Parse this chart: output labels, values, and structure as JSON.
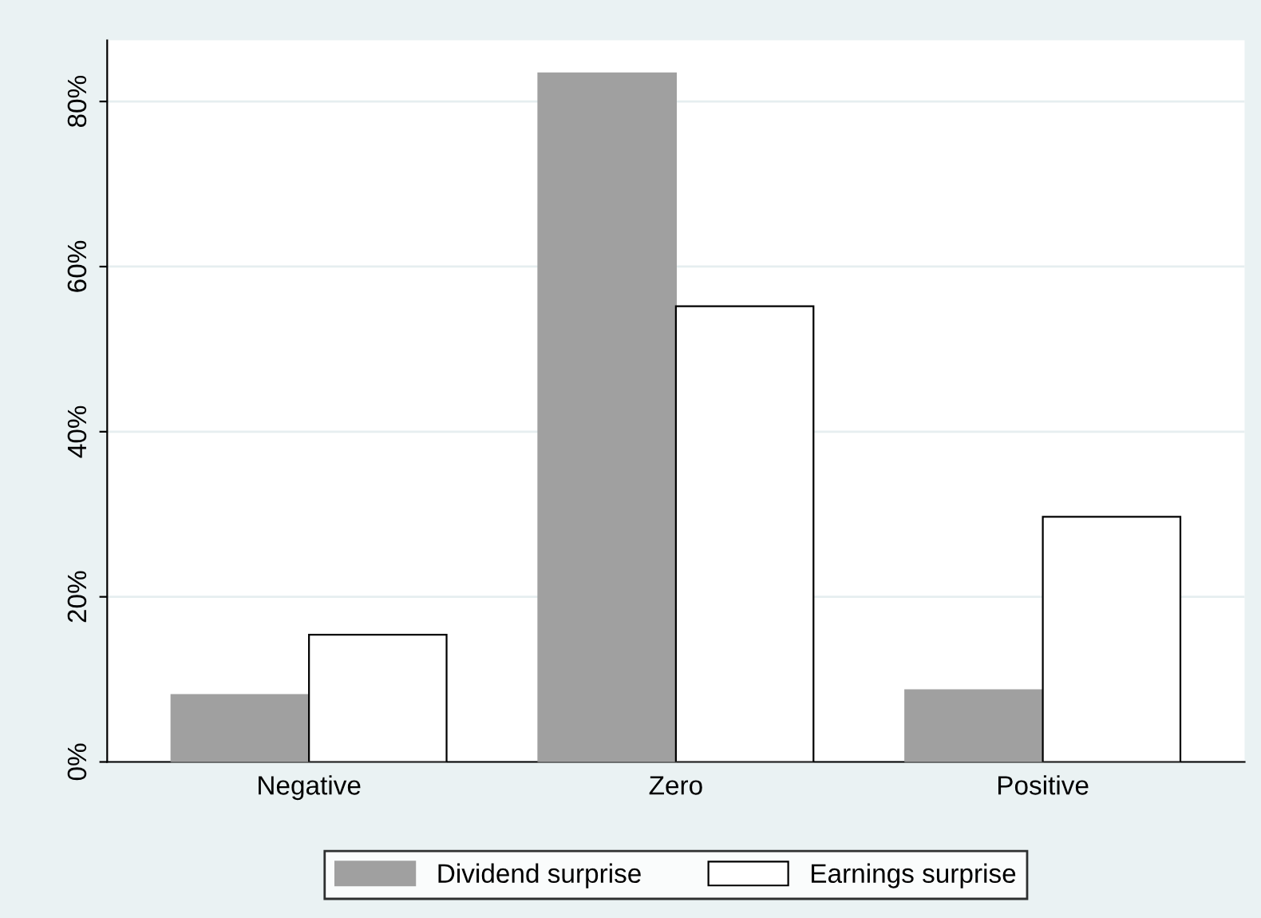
{
  "chart_data": {
    "type": "bar",
    "categories": [
      "Negative",
      "Zero",
      "Positive"
    ],
    "series": [
      {
        "name": "Dividend surprise",
        "color": "#a0a0a0",
        "values": [
          8.1,
          83.4,
          8.7
        ]
      },
      {
        "name": "Earnings surprise",
        "color": "#ffffff",
        "values": [
          15.4,
          55.2,
          29.7
        ]
      }
    ],
    "ylim": [
      0,
      87.4
    ],
    "yticks": [
      {
        "value": 0,
        "label": "0%"
      },
      {
        "value": 20,
        "label": "20%"
      },
      {
        "value": 40,
        "label": "40%"
      },
      {
        "value": 60,
        "label": "60%"
      },
      {
        "value": 80,
        "label": "80%"
      }
    ],
    "grid": "y",
    "legend": "bottom"
  }
}
